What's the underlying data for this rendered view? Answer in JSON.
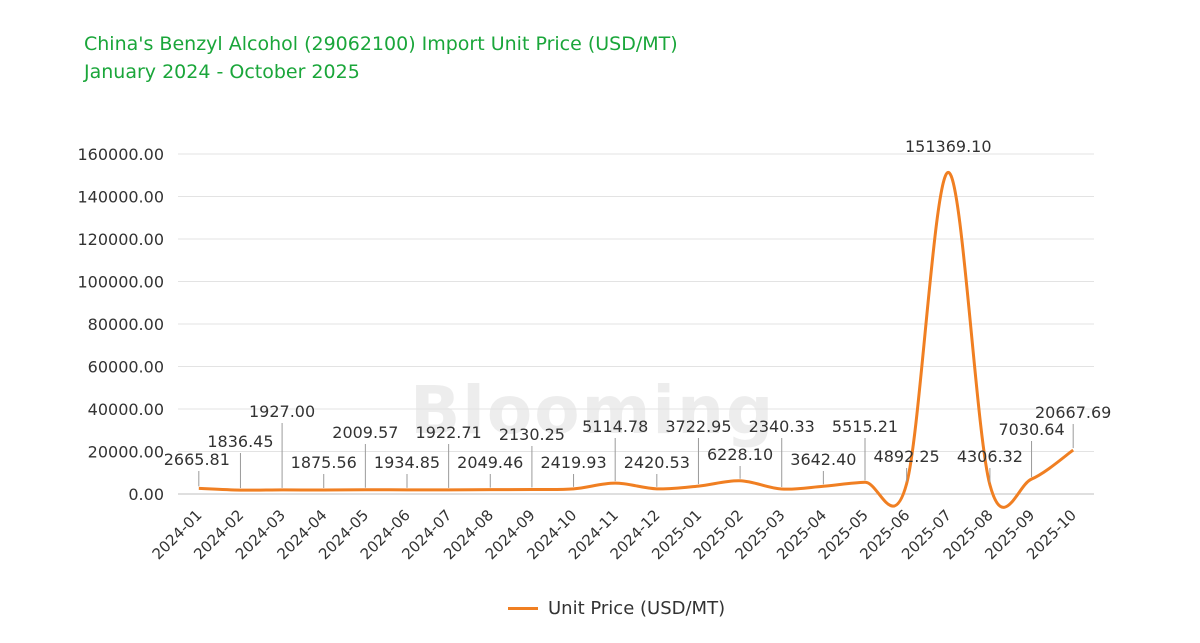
{
  "title_line1": "China's Benzyl Alcohol (29062100) Import Unit Price (USD/MT)",
  "title_line2": "January 2024 - October 2025",
  "watermark": "Blooming",
  "legend_label": "Unit Price (USD/MT)",
  "chart_data": {
    "type": "line",
    "title": "China's Benzyl Alcohol (29062100) Import Unit Price (USD/MT)",
    "subtitle": "January 2024 - October 2025",
    "xlabel": "",
    "ylabel": "",
    "ylim": [
      0,
      160000
    ],
    "y_ticks": [
      "0.00",
      "20000.00",
      "40000.00",
      "60000.00",
      "80000.00",
      "100000.00",
      "120000.00",
      "140000.00",
      "160000.00"
    ],
    "grid": true,
    "legend_position": "bottom",
    "categories": [
      "2024-01",
      "2024-02",
      "2024-03",
      "2024-04",
      "2024-05",
      "2024-06",
      "2024-07",
      "2024-08",
      "2024-09",
      "2024-10",
      "2024-11",
      "2024-12",
      "2025-01",
      "2025-02",
      "2025-03",
      "2025-04",
      "2025-05",
      "2025-06",
      "2025-07",
      "2025-08",
      "2025-09",
      "2025-10"
    ],
    "series": [
      {
        "name": "Unit Price (USD/MT)",
        "color": "#f07f22",
        "values": [
          2665.81,
          1836.45,
          1927.0,
          1875.56,
          2009.57,
          1934.85,
          1922.71,
          2049.46,
          2130.25,
          2419.93,
          5114.78,
          2420.53,
          3722.95,
          6228.1,
          2340.33,
          3642.4,
          5515.21,
          4892.25,
          151369.1,
          4306.32,
          7030.64,
          20667.69
        ],
        "labels": [
          "2665.81",
          "1836.45",
          "1927.00",
          "1875.56",
          "2009.57",
          "1934.85",
          "1922.71",
          "2049.46",
          "2130.25",
          "2419.93",
          "5114.78",
          "2420.53",
          "3722.95",
          "6228.10",
          "2340.33",
          "3642.40",
          "5515.21",
          "4892.25",
          "151369.10",
          "4306.32",
          "7030.64",
          "20667.69"
        ]
      }
    ]
  }
}
